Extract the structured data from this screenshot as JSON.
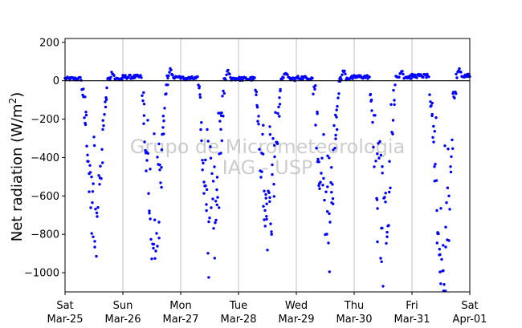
{
  "chart_data": {
    "type": "scatter",
    "title": "",
    "ylabel": "Net radiation (W/m²)",
    "ylabel_main": "Net radiation (W/m",
    "ylabel_sup": "2",
    "ylabel_end": ")",
    "xlabel": "",
    "ylim": [
      -1100,
      220
    ],
    "xlim": [
      0,
      7
    ],
    "yticks": [
      200,
      0,
      -200,
      -400,
      -600,
      -800,
      -1000
    ],
    "ytick_labels": [
      "200",
      "0",
      "−200",
      "−400",
      "−600",
      "−800",
      "−1000"
    ],
    "xticks": [
      {
        "pos": 0,
        "day": "Sat",
        "date": "Mar-25"
      },
      {
        "pos": 1,
        "day": "Sun",
        "date": "Mar-26"
      },
      {
        "pos": 2,
        "day": "Mon",
        "date": "Mar-27"
      },
      {
        "pos": 3,
        "day": "Tue",
        "date": "Mar-28"
      },
      {
        "pos": 4,
        "day": "Wed",
        "date": "Mar-29"
      },
      {
        "pos": 5,
        "day": "Thu",
        "date": "Mar-30"
      },
      {
        "pos": 6,
        "day": "Fri",
        "date": "Mar-31"
      },
      {
        "pos": 7,
        "day": "Sat",
        "date": "Apr-01"
      }
    ],
    "grid": "vertical lines at day boundaries",
    "zero_line": true,
    "marker_color": "#0000ff",
    "watermark": [
      "Grupo de Micrometeorologia",
      "IAG - USP"
    ],
    "series": [
      {
        "values_units": "x in days since Sat Mar-25 00:00, y in W/m²",
        "daily_profile": [
          {
            "day": 0,
            "night_level": 10,
            "trough": -910,
            "morning_start": 0.29,
            "evening_end": 0.73
          },
          {
            "day": 1,
            "night_level": 20,
            "trough": -985,
            "morning_start": 0.32,
            "evening_end": 0.76
          },
          {
            "day": 2,
            "night_level": 12,
            "trough": -995,
            "morning_start": 0.3,
            "evening_end": 0.74
          },
          {
            "day": 3,
            "night_level": 10,
            "trough": -935,
            "morning_start": 0.29,
            "evening_end": 0.73
          },
          {
            "day": 4,
            "night_level": 15,
            "trough": -935,
            "morning_start": 0.28,
            "evening_end": 0.74
          },
          {
            "day": 5,
            "night_level": 20,
            "trough": -1065,
            "morning_start": 0.27,
            "evening_end": 0.72
          },
          {
            "day": 6,
            "night_level": 25,
            "trough": -1050,
            "morning_start": 0.3,
            "evening_end": 0.76
          }
        ]
      }
    ]
  }
}
